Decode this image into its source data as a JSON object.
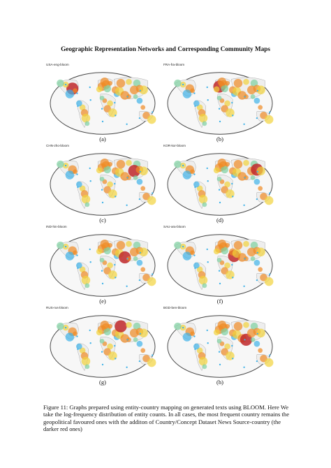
{
  "title": "Geographic Representation Networks and Corresponding Community Maps",
  "panels": [
    {
      "label": "USA-eng-bloom",
      "caption": "(a)",
      "hot": "usa"
    },
    {
      "label": "FRA-fra-bloom",
      "caption": "(b)",
      "hot": "fra"
    },
    {
      "label": "CHN-zho-bloom",
      "caption": "(c)",
      "hot": "chn"
    },
    {
      "label": "KOR-kor-bloom",
      "caption": "(d)",
      "hot": "kor"
    },
    {
      "label": "IND-hin-bloom",
      "caption": "(e)",
      "hot": "ind"
    },
    {
      "label": "SAU-ara-bloom",
      "caption": "(f)",
      "hot": "sau"
    },
    {
      "label": "RUS-rus-bloom",
      "caption": "(g)",
      "hot": "rus"
    },
    {
      "label": "BGD-ben-bloom",
      "caption": "(h)",
      "hot": "bgd"
    }
  ],
  "figure_caption": "Figure 11: Graphs prepared using entity-country mapping on generated texts using BLOOM. Here We take the log-frequency distribution of entity counts. In all cases, the most frequent country remains the geopolitical favoured ones with the additon of Country/Concept Dataset News Source-country (the darker red ones)",
  "colors": {
    "hot": "#c0282a",
    "warm": "#f08a24",
    "mid": "#f2d33c",
    "cool": "#7ed0a0",
    "cold": "#3fb2e8",
    "land": "#f7f7f7",
    "edge": "#444444"
  }
}
